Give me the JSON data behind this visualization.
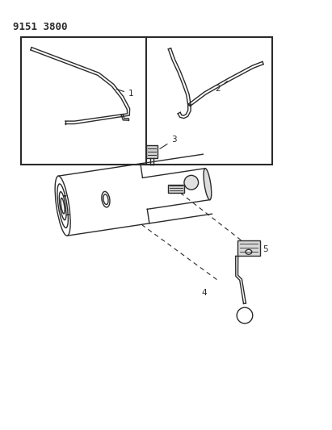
{
  "title": "9151 3800",
  "bg_color": "#ffffff",
  "line_color": "#2a2a2a",
  "title_fontsize": 9,
  "label_fontsize": 7.5,
  "fig_width": 4.11,
  "fig_height": 5.33,
  "dpi": 100
}
